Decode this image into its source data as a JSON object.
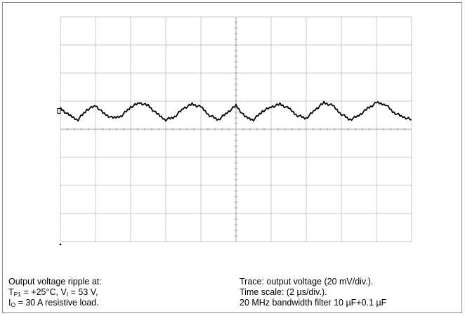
{
  "chart_data": {
    "type": "line",
    "title": "",
    "xlabel": "",
    "ylabel": "",
    "grid": true,
    "x_divisions": 10,
    "y_divisions": 8,
    "x_unit_per_div": "2 µs",
    "y_unit_per_div": "20 mV",
    "xlim": [
      0,
      20
    ],
    "ylim": [
      -80,
      80
    ],
    "series": [
      {
        "x": [
          0,
          0.5,
          1,
          1.5,
          2,
          2.5,
          3,
          3.5,
          4,
          4.5,
          5,
          5.5,
          6,
          6.5,
          7,
          7.5,
          8,
          8.5,
          9,
          9.5,
          10,
          10.5,
          11,
          11.5,
          12,
          12.5,
          13,
          13.5,
          14,
          14.5,
          15,
          15.5,
          16,
          16.5,
          17,
          17.5,
          18,
          18.5,
          19,
          19.5,
          20
        ],
        "y": [
          2,
          -3,
          -6,
          1,
          4,
          -2,
          -5,
          -3,
          3,
          6,
          4,
          -2,
          -6,
          -4,
          2,
          5,
          3,
          -3,
          -6,
          -1,
          4,
          -4,
          -6,
          0,
          3,
          5,
          2,
          -3,
          -5,
          1,
          6,
          4,
          -2,
          -6,
          -3,
          2,
          6,
          5,
          -1,
          -4,
          -6
        ]
      }
    ]
  },
  "captions": {
    "left": {
      "line1": "Output voltage ripple  at:",
      "line2_prefix": "T",
      "line2_sub": "P1",
      "line2_mid": " = +25°C, V",
      "line2_sub2": "I",
      "line2_end": " = 53 V,",
      "line3_prefix": "I",
      "line3_sub": "O",
      "line3_end": " = 30 A resistive load."
    },
    "right": {
      "line1": "Trace: output voltage (20 mV/div.).",
      "line2": "Time scale: (2 µs/div.).",
      "line3": "20 MHz bandwidth filter 10 µF+0.1 µF"
    }
  },
  "colors": {
    "grid": "#c8c8c8",
    "trace": "#000000",
    "axis": "#a0a0a0"
  }
}
